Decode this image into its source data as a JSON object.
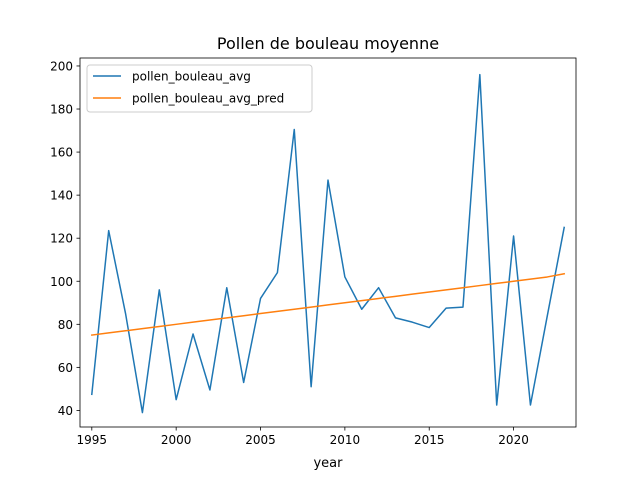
{
  "chart_data": {
    "type": "line",
    "title": "Pollen de bouleau moyenne",
    "xlabel": "year",
    "ylabel": "",
    "x": [
      1995,
      1996,
      1997,
      1998,
      1999,
      2000,
      2001,
      2002,
      2003,
      2004,
      2005,
      2006,
      2007,
      2008,
      2009,
      2010,
      2011,
      2012,
      2013,
      2014,
      2015,
      2016,
      2017,
      2018,
      2019,
      2020,
      2021,
      2022,
      2023
    ],
    "xlim": [
      1994.3,
      2023.7
    ],
    "ylim": [
      32.3,
      203.7
    ],
    "xticks": [
      1995,
      2000,
      2005,
      2010,
      2015,
      2020
    ],
    "yticks": [
      40,
      60,
      80,
      100,
      120,
      140,
      160,
      180,
      200
    ],
    "legend_position": "top-left",
    "grid": false,
    "series": [
      {
        "name": "pollen_bouleau_avg",
        "color": "#1f77b4",
        "values": [
          47.5,
          123.5,
          85.0,
          39.0,
          96.0,
          45.0,
          75.5,
          49.5,
          97.0,
          53.0,
          92.0,
          104.0,
          170.5,
          51.0,
          147.0,
          102.0,
          87.0,
          97.0,
          83.0,
          81.0,
          78.5,
          87.5,
          88.0,
          196.0,
          42.5,
          121.0,
          42.5,
          84.0,
          125.0
        ]
      },
      {
        "name": "pollen_bouleau_avg_pred",
        "color": "#ff7f0e",
        "values": [
          75.0,
          76.0,
          77.0,
          78.0,
          79.0,
          80.0,
          81.0,
          82.0,
          83.0,
          84.0,
          85.0,
          86.0,
          87.0,
          88.0,
          89.0,
          90.0,
          91.0,
          92.0,
          93.0,
          94.0,
          95.0,
          96.0,
          97.0,
          98.0,
          99.0,
          100.0,
          101.0,
          102.0,
          103.5
        ]
      }
    ]
  }
}
